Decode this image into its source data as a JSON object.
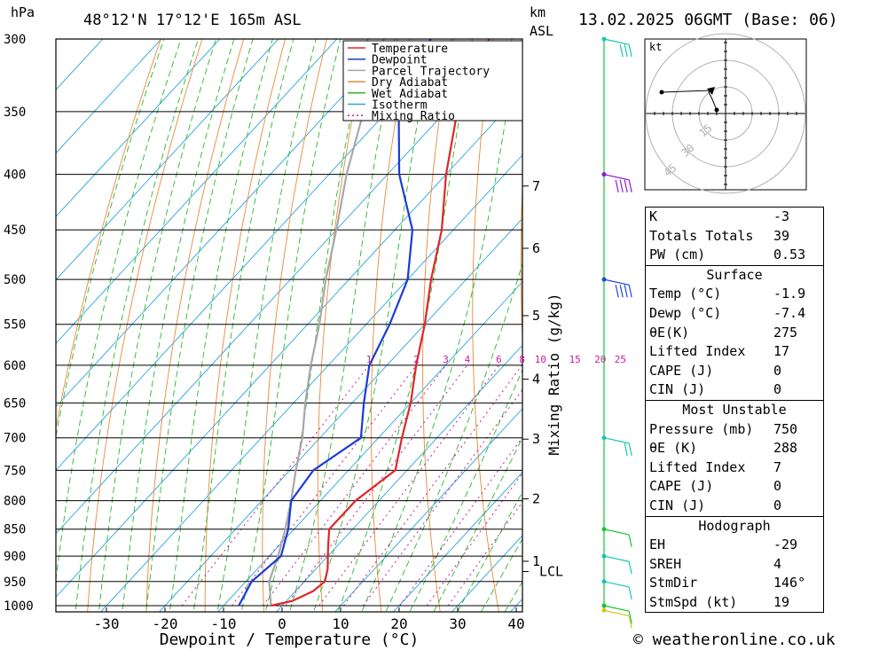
{
  "header": {
    "hpa_unit": "hPa",
    "location": "48°12'N  17°12'E  165m  ASL",
    "km_unit": "km",
    "asl_unit": "ASL",
    "datetime": "13.02.2025  06GMT  (Base: 06)"
  },
  "footer": {
    "copyright": "© weatheronline.co.uk"
  },
  "chart_data": {
    "type": "skew-t log-p",
    "xlabel": "Dewpoint / Temperature (°C)",
    "y2label": "Mixing Ratio (g/kg)",
    "pressure_levels": [
      300,
      350,
      400,
      450,
      500,
      550,
      600,
      650,
      700,
      750,
      800,
      850,
      900,
      950,
      1000
    ],
    "temperature_ticks": [
      -30,
      -20,
      -10,
      0,
      10,
      20,
      30,
      40
    ],
    "km_ticks": [
      {
        "label": "7",
        "p": 410
      },
      {
        "label": "6",
        "p": 468
      },
      {
        "label": "5",
        "p": 540
      },
      {
        "label": "4",
        "p": 618
      },
      {
        "label": "3",
        "p": 702
      },
      {
        "label": "2",
        "p": 797
      },
      {
        "label": "1",
        "p": 910
      },
      {
        "label": "LCL",
        "p": 930
      }
    ],
    "mixing_ratio_labels": [
      "1",
      "2",
      "3",
      "4",
      "6",
      "8",
      "10",
      "15",
      "20",
      "25"
    ],
    "mixing_ratio_values": [
      1,
      2,
      3,
      4,
      6,
      8,
      10,
      15,
      20,
      25
    ],
    "legend": [
      "Temperature",
      "Dewpoint",
      "Parcel Trajectory",
      "Dry Adiabat",
      "Wet Adiabat",
      "Isotherm",
      "Mixing Ratio"
    ],
    "series": [
      {
        "name": "Temperature",
        "color": "#e0262a",
        "points": [
          [
            1000,
            -1.9
          ],
          [
            990,
            1
          ],
          [
            970,
            3
          ],
          [
            950,
            3.5
          ],
          [
            925,
            2
          ],
          [
            900,
            0
          ],
          [
            875,
            -2
          ],
          [
            850,
            -4
          ],
          [
            800,
            -4
          ],
          [
            750,
            -2
          ],
          [
            700,
            -6
          ],
          [
            650,
            -10
          ],
          [
            600,
            -15
          ],
          [
            550,
            -20
          ],
          [
            500,
            -26
          ],
          [
            450,
            -32
          ],
          [
            400,
            -40
          ],
          [
            350,
            -48
          ],
          [
            300,
            -54
          ]
        ]
      },
      {
        "name": "Dewpoint",
        "color": "#1b3bd6",
        "points": [
          [
            1000,
            -7.4
          ],
          [
            950,
            -9
          ],
          [
            900,
            -8
          ],
          [
            850,
            -11
          ],
          [
            800,
            -15
          ],
          [
            750,
            -16
          ],
          [
            700,
            -13
          ],
          [
            650,
            -18
          ],
          [
            600,
            -23
          ],
          [
            550,
            -26
          ],
          [
            500,
            -30
          ],
          [
            450,
            -37
          ],
          [
            400,
            -48
          ],
          [
            350,
            -58
          ],
          [
            300,
            -64
          ]
        ]
      },
      {
        "name": "Parcel Trajectory",
        "color": "#a8a8a8",
        "points": [
          [
            1000,
            -1.9
          ],
          [
            950,
            -6
          ],
          [
            930,
            -7
          ],
          [
            900,
            -8.5
          ],
          [
            850,
            -11.5
          ],
          [
            800,
            -15
          ],
          [
            750,
            -19
          ],
          [
            700,
            -23
          ],
          [
            650,
            -28
          ],
          [
            600,
            -33
          ],
          [
            550,
            -38
          ],
          [
            500,
            -44
          ],
          [
            450,
            -50
          ],
          [
            400,
            -57
          ],
          [
            350,
            -64
          ],
          [
            300,
            -72
          ]
        ]
      }
    ],
    "wind_barbs": [
      {
        "p": 300,
        "speed_kt": 25,
        "color": "#18c4b4"
      },
      {
        "p": 400,
        "speed_kt": 40,
        "color": "#8a1bd6"
      },
      {
        "p": 500,
        "speed_kt": 35,
        "color": "#2244dd"
      },
      {
        "p": 700,
        "speed_kt": 15,
        "color": "#18c4b4"
      },
      {
        "p": 850,
        "speed_kt": 10,
        "color": "#18c432"
      },
      {
        "p": 900,
        "speed_kt": 10,
        "color": "#18c4b4"
      },
      {
        "p": 950,
        "speed_kt": 10,
        "color": "#18c4b4"
      },
      {
        "p": 1000,
        "speed_kt": 10,
        "color": "#18c432"
      },
      {
        "p": 1010,
        "speed_kt": 5,
        "color": "#d4c418"
      }
    ],
    "hodograph": {
      "unit_label": "kt",
      "ring_labels": [
        "15",
        "30",
        "45"
      ],
      "ring_values": [
        15,
        30,
        45
      ]
    }
  },
  "indices": {
    "k_label": "K",
    "k_value": "-3",
    "tt_label": "Totals Totals",
    "tt_value": "39",
    "pw_label": "PW (cm)",
    "pw_value": "0.53"
  },
  "surface": {
    "title": "Surface",
    "temp_label": "Temp (°C)",
    "temp_value": "-1.9",
    "dewp_label": "Dewp (°C)",
    "dewp_value": "-7.4",
    "theta_label": "θE(K)",
    "theta_value": "275",
    "li_label": "Lifted Index",
    "li_value": "17",
    "cape_label": "CAPE (J)",
    "cape_value": "0",
    "cin_label": "CIN (J)",
    "cin_value": "0"
  },
  "most_unstable": {
    "title": "Most Unstable",
    "pressure_label": "Pressure (mb)",
    "pressure_value": "750",
    "theta_label": "θE (K)",
    "theta_value": "288",
    "li_label": "Lifted Index",
    "li_value": "7",
    "cape_label": "CAPE (J)",
    "cape_value": "0",
    "cin_label": "CIN (J)",
    "cin_value": "0"
  },
  "hodograph_table": {
    "title": "Hodograph",
    "eh_label": "EH",
    "eh_value": "-29",
    "sreh_label": "SREH",
    "sreh_value": "4",
    "stmdir_label": "StmDir",
    "stmdir_value": "146°",
    "stmspd_label": "StmSpd (kt)",
    "stmspd_value": "19"
  }
}
